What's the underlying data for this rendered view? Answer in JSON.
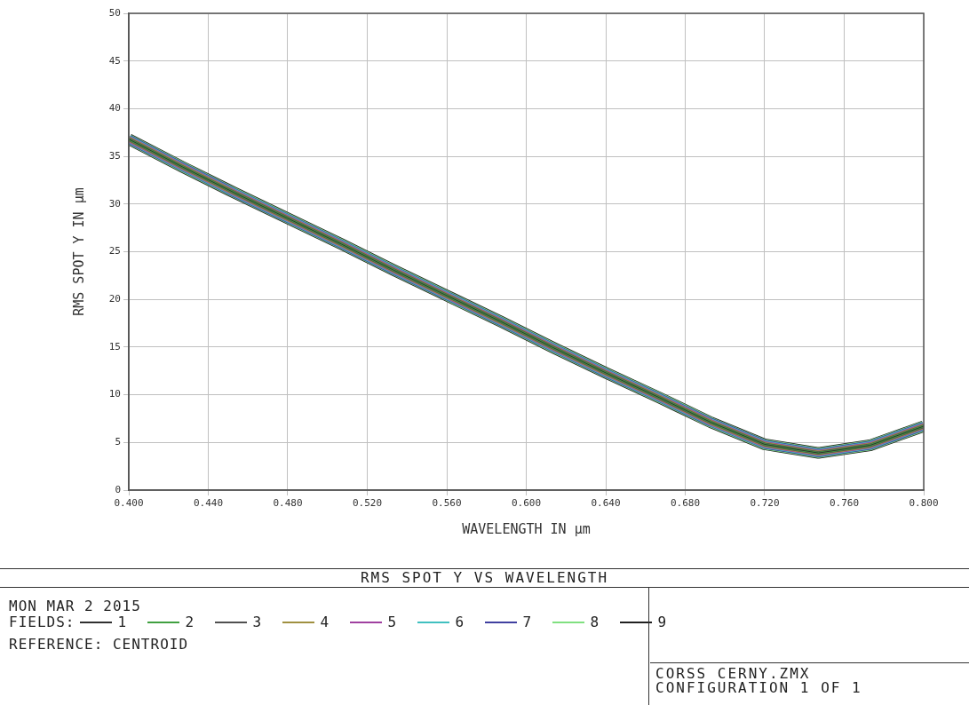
{
  "chart_data": {
    "type": "line",
    "title": "RMS SPOT Y VS WAVELENGTH",
    "xlabel": "WAVELENGTH IN µm",
    "ylabel": "RMS SPOT Y IN µm",
    "legend_title": "FIELDS:",
    "x": [
      0.4,
      0.427,
      0.453,
      0.48,
      0.507,
      0.533,
      0.56,
      0.587,
      0.613,
      0.64,
      0.667,
      0.693,
      0.72,
      0.747,
      0.773,
      0.8
    ],
    "series": [
      {
        "name": "1",
        "color": "#303030",
        "values": [
          36.8,
          33.9,
          31.2,
          28.5,
          25.8,
          23.1,
          20.4,
          17.7,
          15.0,
          12.3,
          9.7,
          7.1,
          4.8,
          3.9,
          4.7,
          6.7
        ]
      },
      {
        "name": "2",
        "color": "#40a040",
        "values": [
          36.8,
          33.9,
          31.2,
          28.5,
          25.8,
          23.1,
          20.4,
          17.7,
          15.0,
          12.3,
          9.7,
          7.1,
          4.8,
          3.9,
          4.7,
          6.7
        ]
      },
      {
        "name": "3",
        "color": "#505050",
        "values": [
          36.8,
          33.9,
          31.2,
          28.5,
          25.8,
          23.1,
          20.4,
          17.7,
          15.0,
          12.3,
          9.7,
          7.1,
          4.8,
          3.9,
          4.7,
          6.7
        ]
      },
      {
        "name": "4",
        "color": "#a09040",
        "values": [
          36.8,
          33.9,
          31.2,
          28.5,
          25.8,
          23.1,
          20.4,
          17.7,
          15.0,
          12.3,
          9.7,
          7.1,
          4.8,
          3.9,
          4.7,
          6.7
        ]
      },
      {
        "name": "5",
        "color": "#a040a0",
        "values": [
          36.8,
          33.9,
          31.2,
          28.5,
          25.8,
          23.1,
          20.4,
          17.7,
          15.0,
          12.3,
          9.7,
          7.1,
          4.8,
          3.9,
          4.7,
          6.7
        ]
      },
      {
        "name": "6",
        "color": "#40c0c0",
        "values": [
          36.8,
          33.9,
          31.2,
          28.5,
          25.8,
          23.1,
          20.4,
          17.7,
          15.0,
          12.3,
          9.7,
          7.1,
          4.8,
          3.9,
          4.7,
          6.7
        ]
      },
      {
        "name": "7",
        "color": "#4040a0",
        "values": [
          36.8,
          33.9,
          31.2,
          28.5,
          25.8,
          23.1,
          20.4,
          17.7,
          15.0,
          12.3,
          9.7,
          7.1,
          4.8,
          3.9,
          4.7,
          6.7
        ]
      },
      {
        "name": "8",
        "color": "#80e080",
        "values": [
          36.8,
          33.9,
          31.2,
          28.5,
          25.8,
          23.1,
          20.4,
          17.7,
          15.0,
          12.3,
          9.7,
          7.1,
          4.8,
          3.9,
          4.7,
          6.7
        ]
      },
      {
        "name": "9",
        "color": "#202020",
        "values": [
          36.8,
          33.9,
          31.2,
          28.5,
          25.8,
          23.1,
          20.4,
          17.7,
          15.0,
          12.3,
          9.7,
          7.1,
          4.8,
          3.9,
          4.7,
          6.7
        ]
      }
    ],
    "xlim": [
      0.4,
      0.8
    ],
    "xticks": [
      {
        "value": 0.4,
        "label": "0.400"
      },
      {
        "value": 0.44,
        "label": "0.440"
      },
      {
        "value": 0.48,
        "label": "0.480"
      },
      {
        "value": 0.52,
        "label": "0.520"
      },
      {
        "value": 0.56,
        "label": "0.560"
      },
      {
        "value": 0.6,
        "label": "0.600"
      },
      {
        "value": 0.64,
        "label": "0.640"
      },
      {
        "value": 0.68,
        "label": "0.680"
      },
      {
        "value": 0.72,
        "label": "0.720"
      },
      {
        "value": 0.76,
        "label": "0.760"
      },
      {
        "value": 0.8,
        "label": "0.800"
      }
    ],
    "ylim": [
      0,
      50
    ],
    "yticks": [
      0,
      5,
      10,
      15,
      20,
      25,
      30,
      35,
      40,
      45,
      50
    ],
    "grid": true,
    "legend": "bottom",
    "marker": "none",
    "line_style": "solid",
    "annotations": [
      "MON MAR 2 2015",
      "REFERENCE: CENTROID",
      "CORSS CERNY.ZMX",
      "CONFIGURATION 1 OF 1"
    ]
  }
}
